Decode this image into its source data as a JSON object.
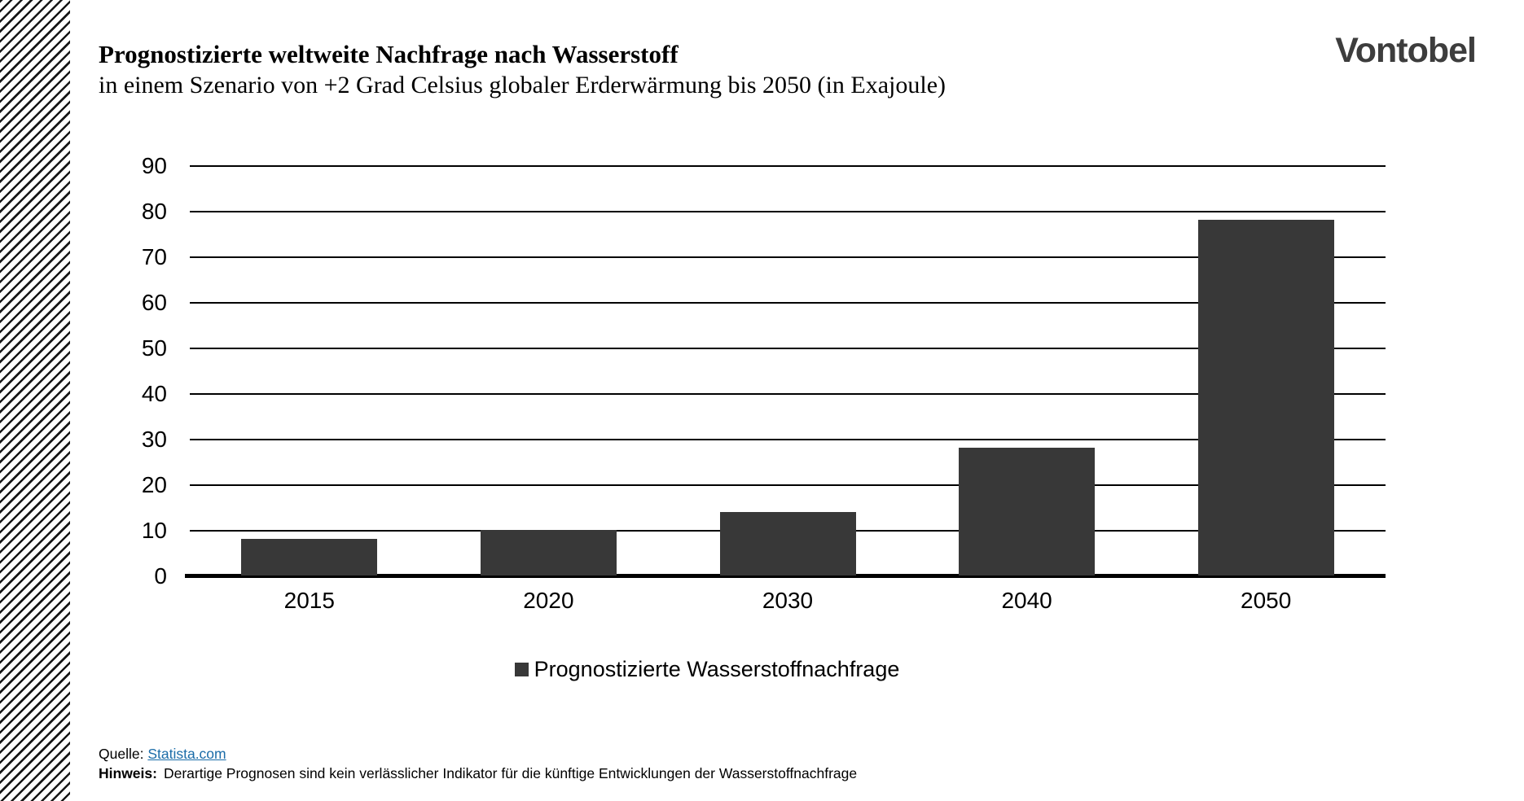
{
  "slide": {
    "title": "Prognostizierte weltweite Nachfrage nach Wasserstoff",
    "subtitle": "in einem Szenario von +2 Grad Celsius globaler Erderwärmung bis 2050 (in Exajoule)",
    "brand": "Vontobel"
  },
  "chart_data": {
    "type": "bar",
    "categories": [
      "2015",
      "2020",
      "2030",
      "2040",
      "2050"
    ],
    "series": [
      {
        "name": "Prognostizierte Wasserstoffnachfrage",
        "values": [
          8,
          10,
          14,
          28,
          78
        ]
      }
    ],
    "title": "Prognostizierte weltweite Nachfrage nach Wasserstoff in einem Szenario von +2 Grad Celsius globaler Erderwärmung bis 2050 (in Exajoule)",
    "xlabel": "",
    "ylabel": "",
    "ylim": [
      0,
      90
    ],
    "yticks": [
      0,
      10,
      20,
      30,
      40,
      50,
      60,
      70,
      80,
      90
    ],
    "grid": true,
    "legend_position": "bottom",
    "bar_color": "#383838"
  },
  "legend": {
    "label": "Prognostizierte Wasserstoffnachfrage",
    "swatch_color": "#383838"
  },
  "footer": {
    "source_label": "Quelle:",
    "source_link": "Statista.com",
    "note_label": "Hinweis:",
    "note_text": "Derartige Prognosen sind kein verlässlicher Indikator für die künftige Entwicklungen der Wasserstoffnachfrage"
  },
  "colors": {
    "bar": "#383838",
    "link": "#1b6ca8",
    "logo": "#3d3d3d",
    "gridline": "#000000"
  }
}
